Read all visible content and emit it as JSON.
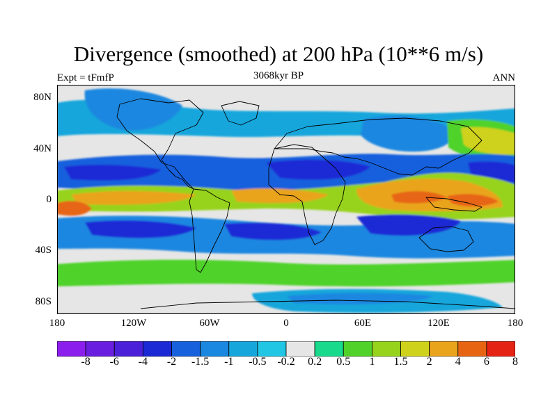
{
  "title": "Divergence (smoothed) at 200 hPa (10**6 m/s)",
  "subtitle_left": "Expt = tFmfP",
  "subtitle_center": "3068kyr BP",
  "subtitle_right": "ANN",
  "lat_labels": [
    "80N",
    "40N",
    "0",
    "40S",
    "80S"
  ],
  "lon_labels": [
    "180",
    "120W",
    "60W",
    "0",
    "60E",
    "120E",
    "180"
  ],
  "levels": [
    "-8",
    "-6",
    "-4",
    "-2",
    "-1.5",
    "-1",
    "-0.5",
    "-0.2",
    "0.2",
    "0.5",
    "1",
    "1.5",
    "2",
    "4",
    "6",
    "8"
  ],
  "colors": [
    "#8c1eed",
    "#6a1ee0",
    "#4b20d8",
    "#1c2ad6",
    "#1761dd",
    "#1a87e0",
    "#17a6dc",
    "#20c6e4",
    "#e6e6e6",
    "#18d98c",
    "#50d22b",
    "#97d31c",
    "#cfd21a",
    "#e9a41c",
    "#e76512",
    "#e52314"
  ]
}
